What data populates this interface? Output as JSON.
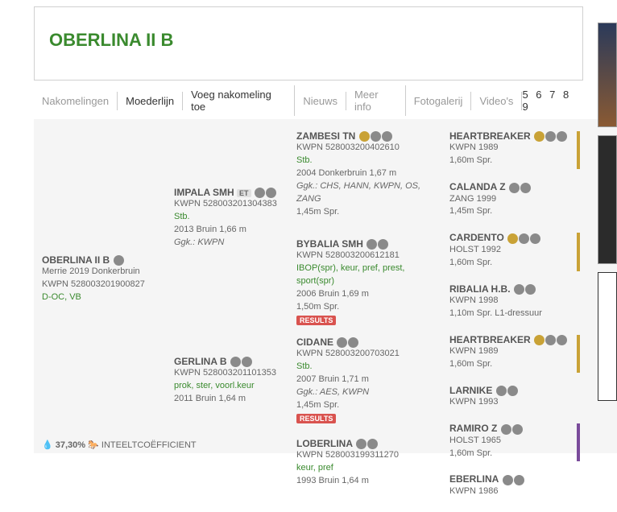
{
  "title": "OBERLINA II B",
  "tabs": [
    "Nakomelingen",
    "Moederlijn",
    "Voeg nakomeling toe",
    "Nieuws",
    "Meer info",
    "Fotogalerij",
    "Video's"
  ],
  "active_tab": 1,
  "pages": "5 6 7 8 9",
  "footer": {
    "pct": "37,30%",
    "label": "INTEELTCOËFFICIENT"
  },
  "subject": {
    "name": "OBERLINA II B",
    "l1": "Merrie 2019 Donkerbruin",
    "l2": "KWPN 528003201900827",
    "l3": "D-OC, VB"
  },
  "g1": [
    {
      "name": "IMPALA SMH",
      "tag": "ET",
      "l1": "KWPN 528003201304383",
      "l2": "Stb.",
      "l3": "2013 Bruin 1,66 m",
      "l4": "Ggk.: KWPN"
    },
    {
      "name": "GERLINA B",
      "l1": "KWPN 528003201101353",
      "l2g": "prok, ster, voorl.keur",
      "l3": "2011 Bruin 1,64 m"
    }
  ],
  "g2": [
    {
      "name": "ZAMBESI TN",
      "gold": true,
      "l1": "KWPN 528003200402610",
      "l2g": "Stb.",
      "l3": "2004 Donkerbruin 1,67 m",
      "l4": "Ggk.: CHS, HANN, KWPN, OS, ZANG",
      "l5": "1,45m Spr."
    },
    {
      "name": "BYBALIA SMH",
      "l1": "KWPN 528003200612181",
      "l2g": "IBOP(spr), keur, pref, prest, sport(spr)",
      "l3": "2006 Bruin 1,69 m",
      "l5": "1,50m Spr.",
      "res": true
    },
    {
      "name": "CIDANE",
      "l1": "KWPN 528003200703021",
      "l2g": "Stb.",
      "l3": "2007 Bruin 1,71 m",
      "l4": "Ggk.: AES, KWPN",
      "l5": "1,45m Spr.",
      "res": true
    },
    {
      "name": "LOBERLINA",
      "l1": "KWPN 528003199311270",
      "l2g": "keur, pref",
      "l3": "1993 Bruin 1,64 m"
    }
  ],
  "g3": [
    {
      "name": "HEARTBREAKER",
      "gold": true,
      "l1": "KWPN 1989",
      "l2": "1,60m Spr.",
      "bar": "gold"
    },
    {
      "name": "CALANDA Z",
      "l1": "ZANG 1999",
      "l2": "1,45m Spr."
    },
    {
      "name": "CARDENTO",
      "gold": true,
      "l1": "HOLST 1992",
      "l2": "1,60m Spr.",
      "bar": "gold"
    },
    {
      "name": "RIBALIA H.B.",
      "l1": "KWPN 1998",
      "l2": "1,10m Spr. L1-dressuur"
    },
    {
      "name": "HEARTBREAKER",
      "gold": true,
      "l1": "KWPN 1989",
      "l2": "1,60m Spr.",
      "bar": "gold"
    },
    {
      "name": "LARNIKE",
      "l1": "KWPN 1993"
    },
    {
      "name": "RAMIRO Z",
      "l1": "HOLST 1965",
      "l2": "1,60m Spr.",
      "bar": "purple"
    },
    {
      "name": "EBERLINA",
      "l1": "KWPN 1986"
    }
  ]
}
